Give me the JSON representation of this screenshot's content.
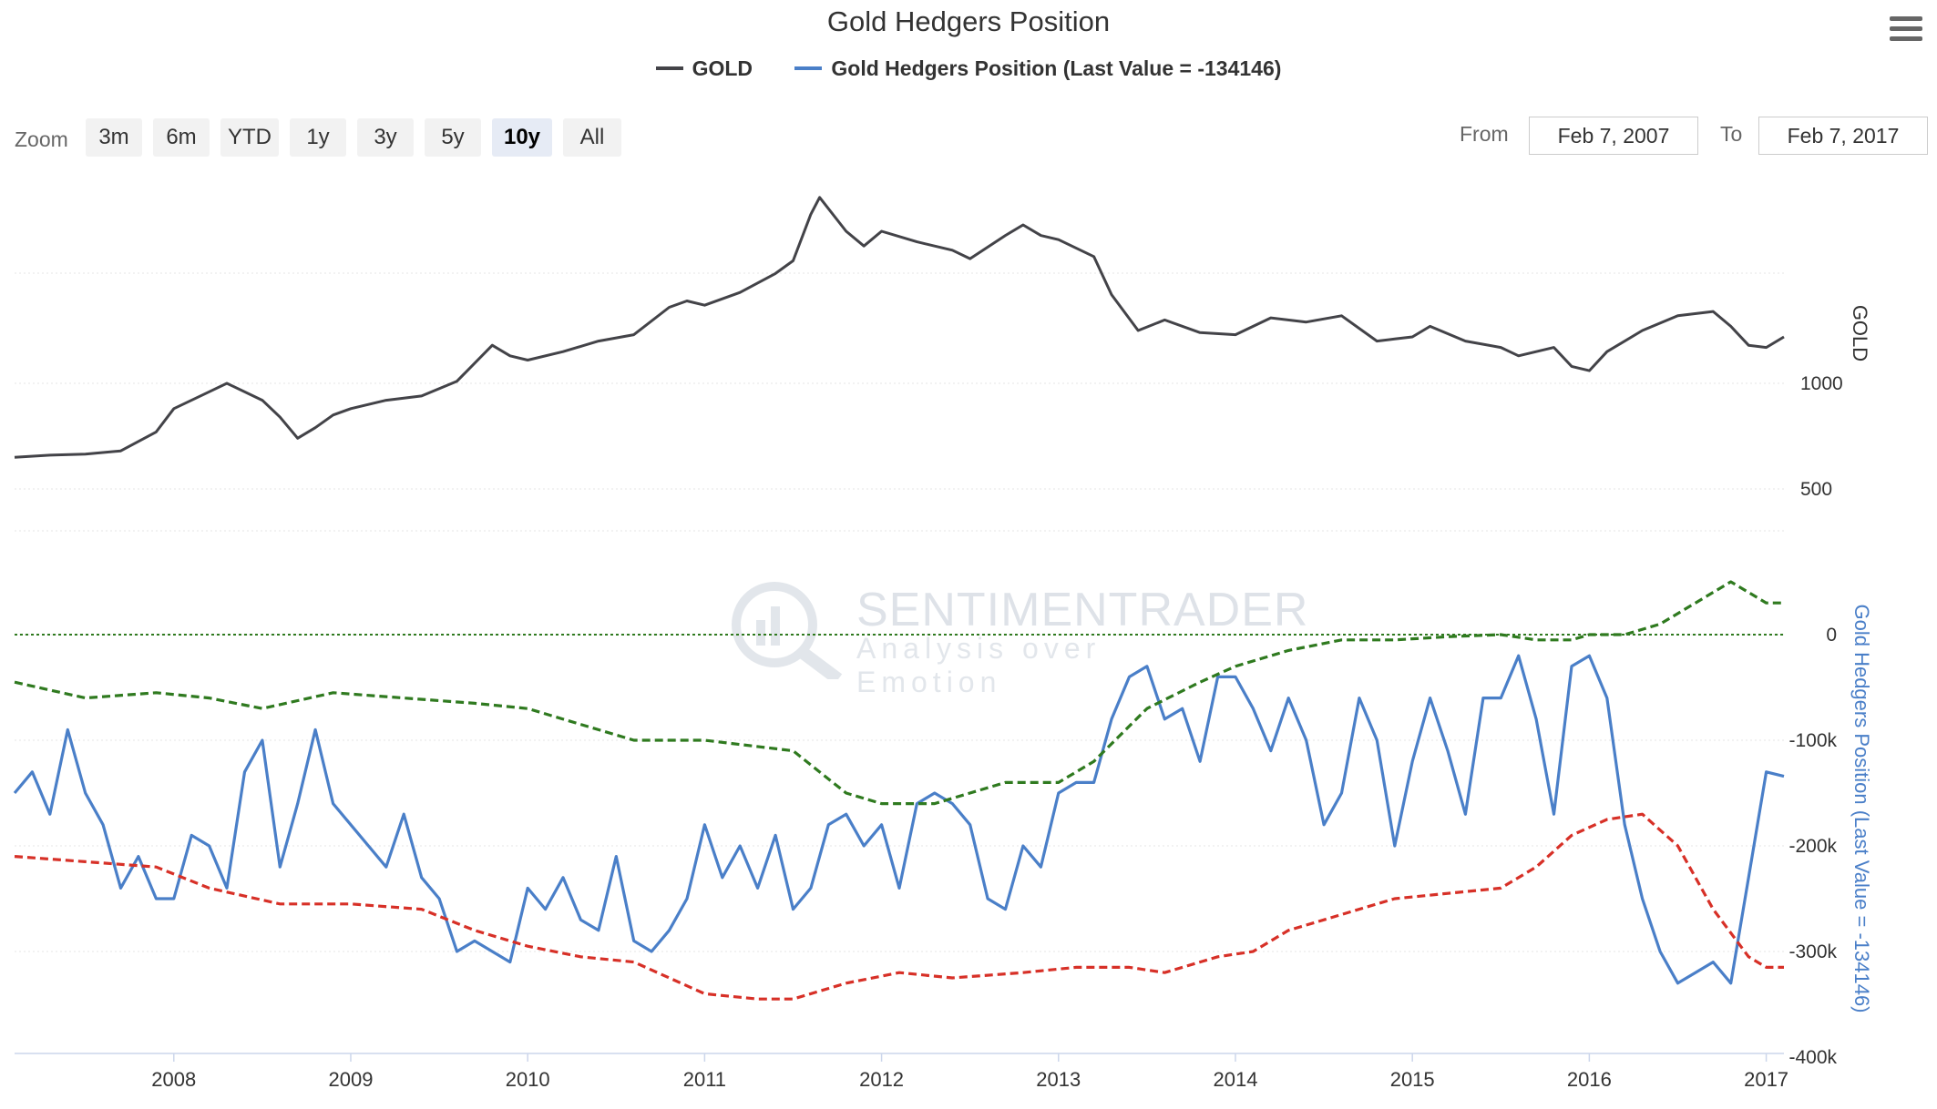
{
  "title": "Gold Hedgers Position",
  "legend": [
    {
      "name": "GOLD",
      "color": "#434348"
    },
    {
      "name": "Gold Hedgers Position (Last Value = -134146)",
      "color": "#4a7fc8"
    }
  ],
  "zoom": {
    "label": "Zoom",
    "buttons": [
      "3m",
      "6m",
      "YTD",
      "1y",
      "3y",
      "5y",
      "10y",
      "All"
    ],
    "active": "10y"
  },
  "range": {
    "from_label": "From",
    "from_value": "Feb 7, 2007",
    "to_label": "To",
    "to_value": "Feb 7, 2017"
  },
  "watermark": {
    "brand": "SENTIMENTRADER",
    "tagline": "Analysis over Emotion"
  },
  "chart_data": [
    {
      "type": "line",
      "name": "GOLD",
      "ylabel": "GOLD",
      "ylim": [
        0,
        2000
      ],
      "yticks": [
        {
          "value": 1000,
          "label": "1000"
        },
        {
          "value": 500,
          "label": "500"
        }
      ],
      "color": "#434348",
      "x": [
        2007.1,
        2007.3,
        2007.5,
        2007.7,
        2007.9,
        2008.0,
        2008.2,
        2008.3,
        2008.5,
        2008.6,
        2008.7,
        2008.8,
        2008.9,
        2009.0,
        2009.2,
        2009.4,
        2009.6,
        2009.8,
        2009.9,
        2010.0,
        2010.2,
        2010.4,
        2010.6,
        2010.8,
        2010.9,
        2011.0,
        2011.2,
        2011.4,
        2011.5,
        2011.6,
        2011.65,
        2011.8,
        2011.9,
        2012.0,
        2012.2,
        2012.4,
        2012.5,
        2012.7,
        2012.8,
        2012.9,
        2013.0,
        2013.2,
        2013.3,
        2013.45,
        2013.6,
        2013.8,
        2014.0,
        2014.2,
        2014.4,
        2014.6,
        2014.8,
        2014.9,
        2015.0,
        2015.1,
        2015.3,
        2015.5,
        2015.6,
        2015.8,
        2015.9,
        2016.0,
        2016.1,
        2016.3,
        2016.5,
        2016.7,
        2016.8,
        2016.9,
        2017.0,
        2017.1
      ],
      "y": [
        650,
        660,
        665,
        680,
        770,
        880,
        960,
        1000,
        920,
        840,
        740,
        790,
        850,
        880,
        920,
        940,
        1010,
        1180,
        1130,
        1110,
        1150,
        1200,
        1230,
        1360,
        1390,
        1370,
        1430,
        1520,
        1580,
        1800,
        1880,
        1720,
        1650,
        1720,
        1670,
        1630,
        1590,
        1700,
        1750,
        1700,
        1680,
        1600,
        1420,
        1250,
        1300,
        1240,
        1230,
        1310,
        1290,
        1320,
        1200,
        1210,
        1220,
        1270,
        1200,
        1170,
        1130,
        1170,
        1080,
        1060,
        1150,
        1250,
        1320,
        1340,
        1270,
        1180,
        1170,
        1220
      ]
    },
    {
      "type": "line",
      "name": "Gold Hedgers Position (Last Value = -134146)",
      "ylabel": "Gold Hedgers Position (Last Value = -134146)",
      "ylim": [
        -400000,
        50000
      ],
      "yticks": [
        {
          "value": 0,
          "label": "0"
        },
        {
          "value": -100000,
          "label": "-100k"
        },
        {
          "value": -200000,
          "label": "-200k"
        },
        {
          "value": -300000,
          "label": "-300k"
        },
        {
          "value": -400000,
          "label": "-400k"
        }
      ],
      "xticks": [
        "2008",
        "2009",
        "2010",
        "2011",
        "2012",
        "2013",
        "2014",
        "2015",
        "2016",
        "2017"
      ],
      "series": [
        {
          "color": "#4a7fc8",
          "style": "solid",
          "x": [
            2007.1,
            2007.2,
            2007.3,
            2007.4,
            2007.5,
            2007.6,
            2007.7,
            2007.8,
            2007.9,
            2008.0,
            2008.1,
            2008.2,
            2008.3,
            2008.4,
            2008.5,
            2008.6,
            2008.7,
            2008.8,
            2008.9,
            2009.0,
            2009.1,
            2009.2,
            2009.3,
            2009.4,
            2009.5,
            2009.6,
            2009.7,
            2009.8,
            2009.9,
            2010.0,
            2010.1,
            2010.2,
            2010.3,
            2010.4,
            2010.5,
            2010.6,
            2010.7,
            2010.8,
            2010.9,
            2011.0,
            2011.1,
            2011.2,
            2011.3,
            2011.4,
            2011.5,
            2011.6,
            2011.7,
            2011.8,
            2011.9,
            2012.0,
            2012.1,
            2012.2,
            2012.3,
            2012.4,
            2012.5,
            2012.6,
            2012.7,
            2012.8,
            2012.9,
            2013.0,
            2013.1,
            2013.2,
            2013.3,
            2013.4,
            2013.5,
            2013.6,
            2013.7,
            2013.8,
            2013.9,
            2014.0,
            2014.1,
            2014.2,
            2014.3,
            2014.4,
            2014.5,
            2014.6,
            2014.7,
            2014.8,
            2014.9,
            2015.0,
            2015.1,
            2015.2,
            2015.3,
            2015.4,
            2015.5,
            2015.6,
            2015.7,
            2015.8,
            2015.9,
            2016.0,
            2016.1,
            2016.2,
            2016.3,
            2016.4,
            2016.5,
            2016.6,
            2016.7,
            2016.8,
            2016.9,
            2017.0,
            2017.1
          ],
          "y": [
            -150000,
            -130000,
            -170000,
            -90000,
            -150000,
            -180000,
            -240000,
            -210000,
            -250000,
            -250000,
            -190000,
            -200000,
            -240000,
            -130000,
            -100000,
            -220000,
            -160000,
            -90000,
            -160000,
            -180000,
            -200000,
            -220000,
            -170000,
            -230000,
            -250000,
            -300000,
            -290000,
            -300000,
            -310000,
            -240000,
            -260000,
            -230000,
            -270000,
            -280000,
            -210000,
            -290000,
            -300000,
            -280000,
            -250000,
            -180000,
            -230000,
            -200000,
            -240000,
            -190000,
            -260000,
            -240000,
            -180000,
            -170000,
            -200000,
            -180000,
            -240000,
            -160000,
            -150000,
            -160000,
            -180000,
            -250000,
            -260000,
            -200000,
            -220000,
            -150000,
            -140000,
            -140000,
            -80000,
            -40000,
            -30000,
            -80000,
            -70000,
            -120000,
            -40000,
            -40000,
            -70000,
            -110000,
            -60000,
            -100000,
            -180000,
            -150000,
            -60000,
            -100000,
            -200000,
            -120000,
            -60000,
            -110000,
            -170000,
            -60000,
            -60000,
            -20000,
            -80000,
            -170000,
            -30000,
            -20000,
            -60000,
            -180000,
            -250000,
            -300000,
            -330000,
            -320000,
            -310000,
            -330000,
            -230000,
            -130000,
            -134146
          ]
        },
        {
          "color": "#2f7a1f",
          "style": "dashed",
          "x": [
            2007.1,
            2007.5,
            2007.9,
            2008.2,
            2008.5,
            2008.9,
            2009.3,
            2009.7,
            2010.0,
            2010.3,
            2010.6,
            2011.0,
            2011.5,
            2011.8,
            2012.0,
            2012.3,
            2012.7,
            2013.0,
            2013.2,
            2013.5,
            2013.8,
            2014.0,
            2014.3,
            2014.6,
            2014.9,
            2015.2,
            2015.5,
            2015.7,
            2015.9,
            2016.0,
            2016.2,
            2016.4,
            2016.6,
            2016.8,
            2016.9,
            2017.0,
            2017.1
          ],
          "y": [
            -45000,
            -60000,
            -55000,
            -60000,
            -70000,
            -55000,
            -60000,
            -65000,
            -70000,
            -85000,
            -100000,
            -100000,
            -110000,
            -150000,
            -160000,
            -160000,
            -140000,
            -140000,
            -120000,
            -70000,
            -45000,
            -30000,
            -15000,
            -5000,
            -5000,
            -2000,
            0,
            -5000,
            -5000,
            0,
            0,
            10000,
            30000,
            50000,
            40000,
            30000,
            30000
          ]
        },
        {
          "color": "#d73027",
          "style": "dashed",
          "x": [
            2007.1,
            2007.5,
            2007.9,
            2008.2,
            2008.6,
            2009.0,
            2009.4,
            2009.7,
            2010.0,
            2010.3,
            2010.6,
            2011.0,
            2011.3,
            2011.5,
            2011.8,
            2012.1,
            2012.4,
            2012.8,
            2013.1,
            2013.4,
            2013.6,
            2013.9,
            2014.1,
            2014.3,
            2014.6,
            2014.9,
            2015.2,
            2015.5,
            2015.7,
            2015.9,
            2016.1,
            2016.3,
            2016.5,
            2016.7,
            2016.9,
            2017.0,
            2017.1
          ],
          "y": [
            -210000,
            -215000,
            -220000,
            -240000,
            -255000,
            -255000,
            -260000,
            -280000,
            -295000,
            -305000,
            -310000,
            -340000,
            -345000,
            -345000,
            -330000,
            -320000,
            -325000,
            -320000,
            -315000,
            -315000,
            -320000,
            -305000,
            -300000,
            -280000,
            -265000,
            -250000,
            -245000,
            -240000,
            -220000,
            -190000,
            -175000,
            -170000,
            -200000,
            -260000,
            -305000,
            -315000,
            -315000
          ]
        }
      ]
    }
  ]
}
